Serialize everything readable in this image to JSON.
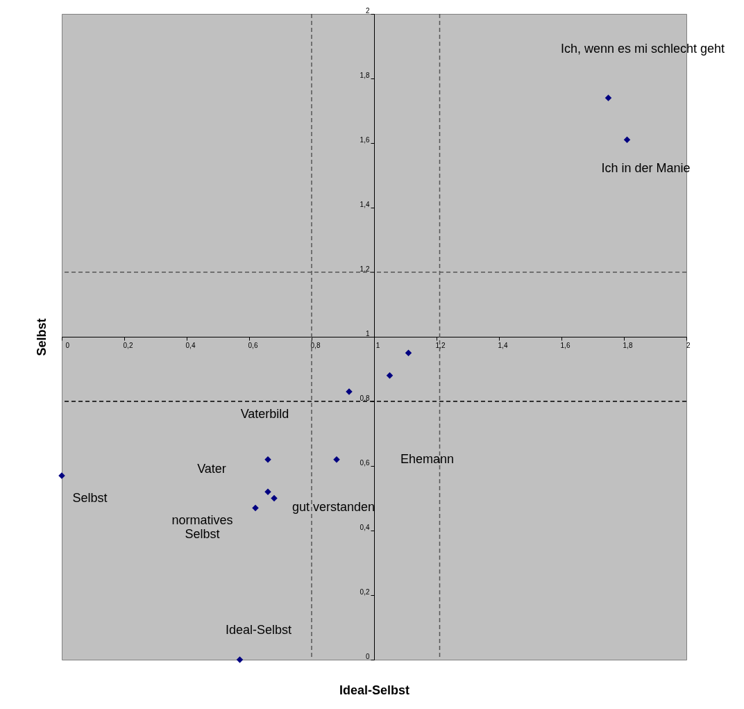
{
  "chart_data": {
    "type": "scatter",
    "xlabel": "Ideal-Selbst",
    "ylabel": "Selbst",
    "series": [
      {
        "color": "#000080",
        "x": [
          1.75,
          1.81,
          1.11,
          1.05,
          0.92,
          0.66,
          0.88,
          0.66,
          0.68,
          0.62,
          0,
          0.57
        ],
        "values": [
          1.74,
          1.61,
          0.95,
          0.88,
          0.83,
          0.62,
          0.62,
          0.52,
          0.5,
          0.47,
          0.57,
          0
        ]
      }
    ],
    "marker": "diamond",
    "grid": false,
    "xlim": [
      0,
      2
    ],
    "ylim": [
      0,
      2
    ],
    "xticks": [
      0,
      {
        "value": 0.2,
        "label": "0,2"
      },
      {
        "value": 0.4,
        "label": "0,4"
      },
      {
        "value": 0.6,
        "label": "0,6"
      },
      {
        "value": 0.8,
        "label": "0,8"
      },
      1,
      {
        "value": 1.2,
        "label": "1,2"
      },
      {
        "value": 1.4,
        "label": "1,4"
      },
      {
        "value": 1.6,
        "label": "1,6"
      },
      {
        "value": 1.8,
        "label": "1,8"
      },
      2
    ],
    "yticks": [
      0,
      {
        "value": 0.2,
        "label": "0,2"
      },
      {
        "value": 0.4,
        "label": "0,4"
      },
      {
        "value": 0.6,
        "label": "0,6"
      },
      {
        "value": 0.8,
        "label": "0,8"
      },
      1,
      {
        "value": 1.2,
        "label": "1,2"
      },
      {
        "value": 1.4,
        "label": "1,4"
      },
      {
        "value": 1.6,
        "label": "1,6"
      },
      {
        "value": 1.8,
        "label": "1,8"
      },
      2
    ],
    "ref_lines": [
      {
        "axis": "x",
        "value": 0.8,
        "color": "#555555",
        "line_style": "dashed"
      },
      {
        "axis": "x",
        "value": 1.21,
        "color": "#555555",
        "line_style": "dashed"
      },
      {
        "axis": "y",
        "value": 1.2,
        "color": "#555555",
        "line_style": "dashed"
      },
      {
        "axis": "y",
        "value": 0.8,
        "color": "#000000",
        "line_style": "dashed"
      }
    ],
    "annotations": [
      "Ich, wenn es mi schlecht geht",
      "Ich in der Manie",
      "Vaterbild",
      "Vater",
      "Ehemann",
      "Selbst",
      "normatives\nSelbst",
      "gut verstanden",
      "Ideal-Selbst"
    ]
  }
}
